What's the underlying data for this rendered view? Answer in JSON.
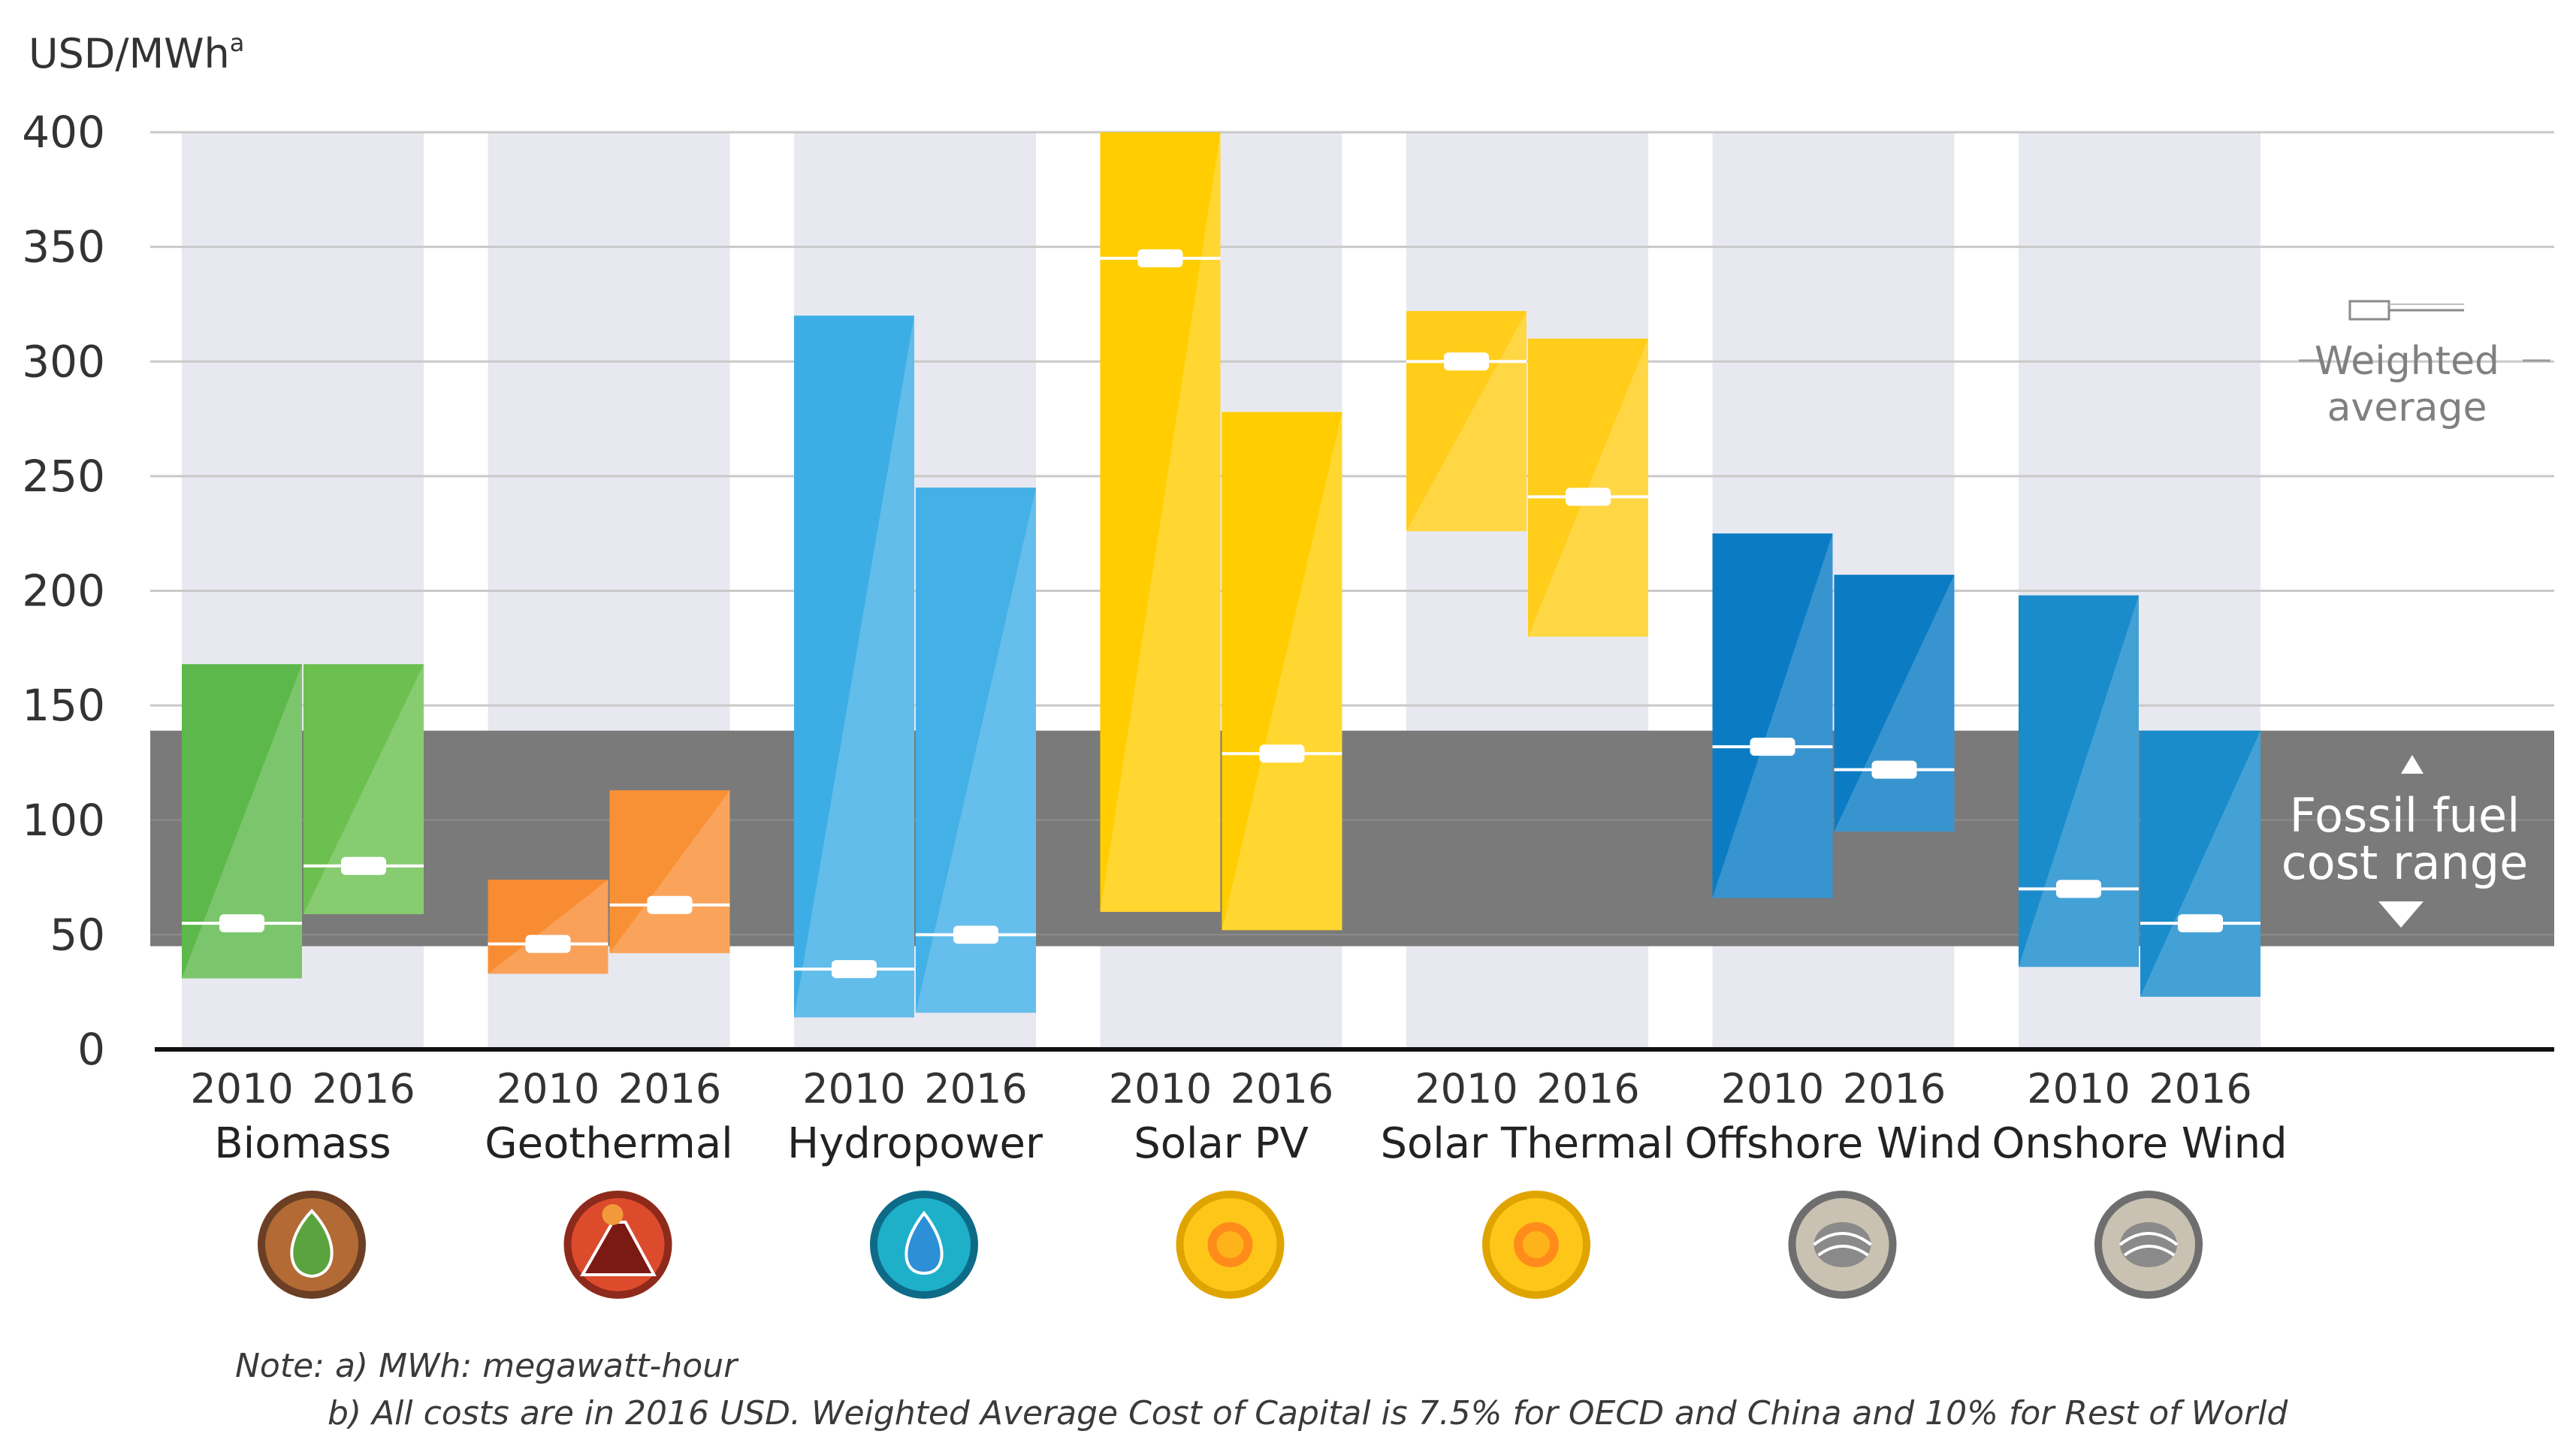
{
  "chart_data": {
    "type": "range-bar",
    "ylabel": "USD/MWh",
    "ylabel_superscript": "a",
    "ylim": [
      0,
      400
    ],
    "yticks": [
      0,
      50,
      100,
      150,
      200,
      250,
      300,
      350,
      400
    ],
    "grid": true,
    "years": [
      "2010",
      "2016"
    ],
    "categories": [
      {
        "name": "Biomass",
        "icon": "biomass-icon",
        "color_2010": "#5cb84a",
        "color_2016": "#6cc04f",
        "2010": {
          "min": 31,
          "max": 168,
          "avg": 55
        },
        "2016": {
          "min": 59,
          "max": 168,
          "avg": 80
        }
      },
      {
        "name": "Geothermal",
        "icon": "geothermal-icon",
        "color_2010": "#f88c33",
        "color_2016": "#f89035",
        "2010": {
          "min": 33,
          "max": 74,
          "avg": 46
        },
        "2016": {
          "min": 42,
          "max": 113,
          "avg": 63
        }
      },
      {
        "name": "Hydropower",
        "icon": "hydropower-icon",
        "color_2010": "#3daee5",
        "color_2016": "#43b0e6",
        "2010": {
          "min": 14,
          "max": 320,
          "avg": 35
        },
        "2016": {
          "min": 16,
          "max": 245,
          "avg": 50
        }
      },
      {
        "name": "Solar PV",
        "icon": "solar-pv-icon",
        "color_2010": "#ffcd00",
        "color_2016": "#ffcd00",
        "2010": {
          "min": 60,
          "max": 400,
          "avg": 345
        },
        "2016": {
          "min": 52,
          "max": 278,
          "avg": 129
        }
      },
      {
        "name": "Solar Thermal",
        "icon": "solar-thermal-icon",
        "color_2010": "#ffcd1a",
        "color_2016": "#ffcd1a",
        "2010": {
          "min": 226,
          "max": 322,
          "avg": 300
        },
        "2016": {
          "min": 180,
          "max": 310,
          "avg": 241
        }
      },
      {
        "name": "Offshore Wind",
        "icon": "offshore-wind-icon",
        "color_2010": "#0b7cc4",
        "color_2016": "#0b7cc4",
        "2010": {
          "min": 66,
          "max": 225,
          "avg": 132
        },
        "2016": {
          "min": 95,
          "max": 207,
          "avg": 122
        }
      },
      {
        "name": "Onshore Wind",
        "icon": "onshore-wind-icon",
        "color_2010": "#1a8ccc",
        "color_2016": "#1a8ccc",
        "2010": {
          "min": 36,
          "max": 198,
          "avg": 70
        },
        "2016": {
          "min": 23,
          "max": 139,
          "avg": 55
        }
      }
    ],
    "fossil_fuel_range": {
      "min": 45,
      "max": 139,
      "color": "#7a7a7a",
      "label_line1": "Fossil fuel",
      "label_line2": "cost range"
    },
    "legend": {
      "position": "right",
      "label_line1": "Weighted",
      "label_line2": "average"
    },
    "notes": {
      "line1": "Note: a) MWh: megawatt-hour",
      "line2": "b) All costs are in 2016 USD. Weighted Average Cost of Capital is 7.5% for OECD and China and 10% for Rest of World"
    }
  },
  "colors": {
    "column_bg": "#e8e9f0",
    "grid": "#c9c9c9",
    "axis": "#111111",
    "text": "#333333",
    "legend_text": "#808080"
  }
}
